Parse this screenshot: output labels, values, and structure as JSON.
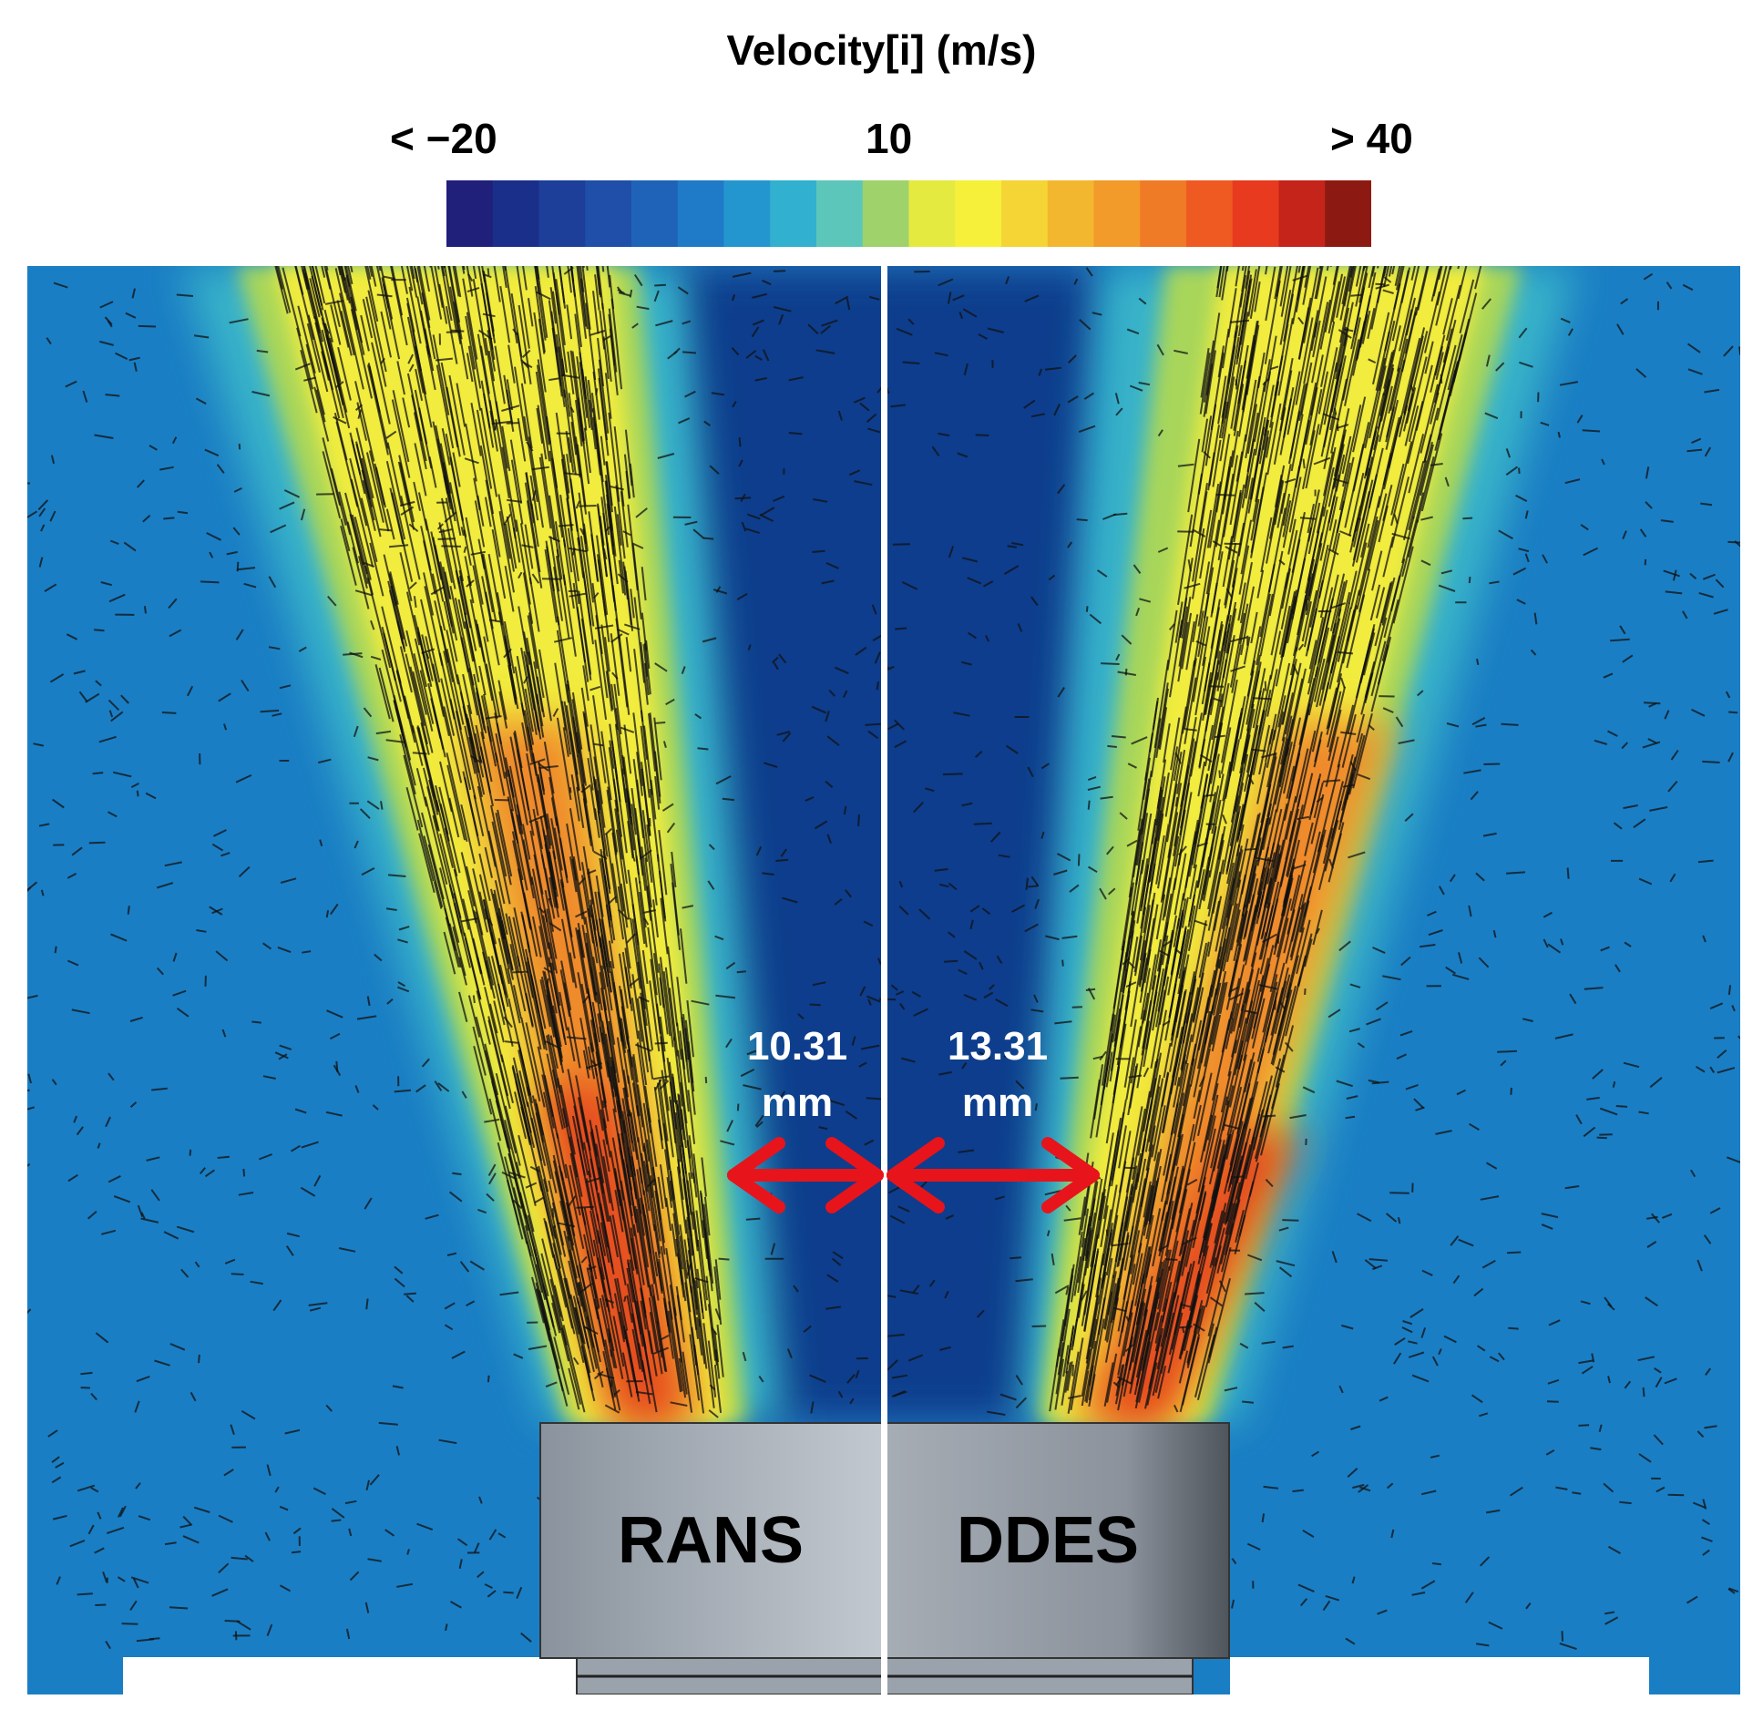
{
  "colorbar": {
    "title": "Velocity[i] (m/s)",
    "tick_min": "< −20",
    "tick_mid": "10",
    "tick_max": "> 40",
    "colors": [
      "#201f7a",
      "#1a2f8a",
      "#1d3f99",
      "#1f4fa8",
      "#1f63b8",
      "#1f7bc7",
      "#2496cf",
      "#31b0cf",
      "#5dc6bb",
      "#9fd26a",
      "#e5ea40",
      "#f6f03a",
      "#f5d435",
      "#f3b72f",
      "#f29a2a",
      "#f07b26",
      "#ee5a22",
      "#e83a1e",
      "#c5241a",
      "#8d1a12"
    ]
  },
  "annotations": {
    "gap_left": "10.31\nmm",
    "gap_right": "13.31\nmm",
    "arrow_color": "#e8141b"
  },
  "panels": {
    "left_label": "RANS",
    "right_label": "DDES"
  },
  "field_colors": {
    "background": "#1a7ec4",
    "core_dark": "#0f3e8c",
    "jet_outer": "#37b3c9",
    "jet_mid": "#a8d65a",
    "jet_yellow": "#f1ec3c",
    "jet_orange": "#ef8a2a",
    "jet_red": "#e5481f"
  }
}
